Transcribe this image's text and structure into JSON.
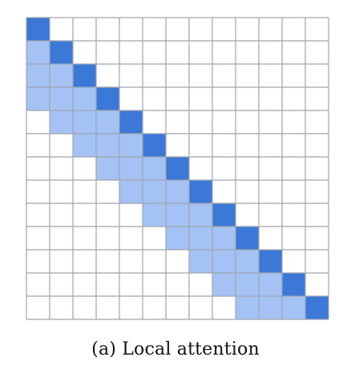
{
  "caption": "(a) Local attention",
  "matrix": {
    "rows": 13,
    "cols": 13,
    "window_back": 3,
    "cell_states": [
      "empty",
      "window",
      "self"
    ]
  },
  "colors": {
    "self": "#3b78d8",
    "window": "#a4c2f4",
    "empty": "#ffffff",
    "grid_line": "#a0a4ad"
  }
}
